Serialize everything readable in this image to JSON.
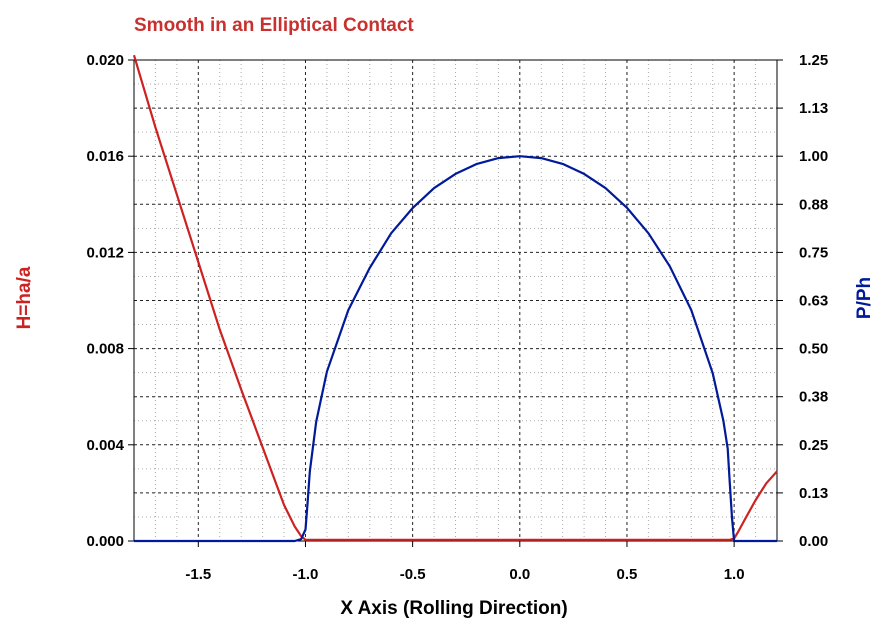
{
  "chart_data": {
    "type": "line",
    "title": "Smooth in an Elliptical Contact",
    "xlabel": "X Axis (Rolling Direction)",
    "ylabel_left": "H=ha/a",
    "ylabel_right": "P/Ph",
    "xlim": [
      -1.8,
      1.2
    ],
    "ylim_left": [
      0,
      0.02
    ],
    "ylim_right": [
      0,
      1.25
    ],
    "x_ticks": [
      "-1.5",
      "-1.0",
      "-0.5",
      "0.0",
      "0.5",
      "1.0"
    ],
    "x_tick_values": [
      -1.5,
      -1.0,
      -0.5,
      0.0,
      0.5,
      1.0
    ],
    "y_left_ticks": [
      "0.000",
      "0.004",
      "0.008",
      "0.012",
      "0.016",
      "0.020"
    ],
    "y_left_tick_values": [
      0,
      0.004,
      0.008,
      0.012,
      0.016,
      0.02
    ],
    "y_right_ticks": [
      "0.00",
      "0.13",
      "0.25",
      "0.38",
      "0.50",
      "0.63",
      "0.75",
      "0.88",
      "1.00",
      "1.13",
      "1.25"
    ],
    "y_right_tick_values": [
      0,
      0.125,
      0.25,
      0.375,
      0.5,
      0.625,
      0.75,
      0.875,
      1.0,
      1.125,
      1.25
    ],
    "grid": true,
    "colors": {
      "film": "#cc2222",
      "pressure": "#001a99",
      "title": "#c8312f"
    },
    "series": [
      {
        "axis": "left",
        "x": [
          -1.8,
          -1.7,
          -1.6,
          -1.5,
          -1.4,
          -1.3,
          -1.2,
          -1.15,
          -1.1,
          -1.05,
          -1.02,
          -1.0,
          -0.5,
          0.0,
          0.5,
          0.98,
          1.0,
          1.02,
          1.05,
          1.1,
          1.15,
          1.2
        ],
        "y": [
          0.0202,
          0.0172,
          0.0144,
          0.0116,
          0.0088,
          0.0063,
          0.0039,
          0.0027,
          0.0015,
          0.0006,
          0.0002,
          5e-05,
          5e-05,
          5e-05,
          5e-05,
          5e-05,
          0.0001,
          0.0004,
          0.0009,
          0.0017,
          0.0024,
          0.0029
        ]
      },
      {
        "axis": "right",
        "x": [
          -1.8,
          -1.05,
          -1.02,
          -1.0,
          -0.99,
          -0.98,
          -0.95,
          -0.9,
          -0.8,
          -0.7,
          -0.6,
          -0.5,
          -0.4,
          -0.3,
          -0.2,
          -0.1,
          0.0,
          0.1,
          0.2,
          0.3,
          0.4,
          0.5,
          0.6,
          0.7,
          0.8,
          0.9,
          0.95,
          0.97,
          0.98,
          0.99,
          1.0,
          1.2
        ],
        "y": [
          0.0,
          0.0,
          0.005,
          0.03,
          0.1,
          0.18,
          0.31,
          0.44,
          0.6,
          0.71,
          0.8,
          0.865,
          0.917,
          0.954,
          0.98,
          0.995,
          1.0,
          0.995,
          0.98,
          0.954,
          0.917,
          0.866,
          0.8,
          0.714,
          0.6,
          0.436,
          0.312,
          0.24,
          0.15,
          0.06,
          0.0,
          0.0
        ]
      }
    ]
  }
}
